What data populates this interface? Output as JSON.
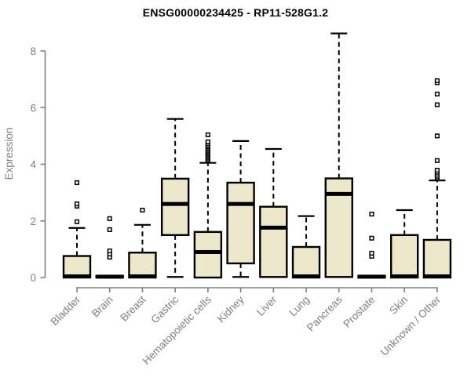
{
  "chart_data": {
    "type": "boxplot",
    "title": "ENSG00000234425 - RP11-528G1.2",
    "ylabel": "Expression",
    "xlabel": "",
    "yticks": [
      0,
      2,
      4,
      6,
      8
    ],
    "ylim": [
      0,
      8.7
    ],
    "grid": false,
    "outlier_marker": "open-square",
    "colors": {
      "box_fill": "#EDE8CB",
      "box_stroke": "#000000",
      "median": "#000000",
      "whisker": "#000000",
      "axis": "#7f7f7f",
      "tick_label": "#7f7f7f",
      "title": "#000000",
      "background": "#ffffff"
    },
    "categories": [
      "Bladder",
      "Brain",
      "Breast",
      "Gastric",
      "Hematopoietic cells",
      "Kidney",
      "Liver",
      "Lung",
      "Pancreas",
      "Prostate",
      "Skin",
      "Unknown / Other"
    ],
    "stats": [
      {
        "category": "Bladder",
        "whisker_low": 0,
        "q1": 0,
        "median": 0.04,
        "q3": 0.76,
        "whisker_high": 1.75,
        "outliers": [
          1.97,
          2.52,
          2.6,
          3.35
        ]
      },
      {
        "category": "Brain",
        "whisker_low": 0,
        "q1": 0,
        "median": 0.03,
        "q3": 0.06,
        "whisker_high": 0.06,
        "outliers": [
          0.72,
          0.83,
          0.94,
          1.69,
          2.08
        ]
      },
      {
        "category": "Breast",
        "whisker_low": 0,
        "q1": 0,
        "median": 0.04,
        "q3": 0.88,
        "whisker_high": 1.86,
        "outliers": [
          2.38
        ]
      },
      {
        "category": "Gastric",
        "whisker_low": 0.02,
        "q1": 1.5,
        "median": 2.6,
        "q3": 3.49,
        "whisker_high": 5.6,
        "outliers": []
      },
      {
        "category": "Hematopoietic cells",
        "whisker_low": 0,
        "q1": 0,
        "median": 0.9,
        "q3": 1.61,
        "whisker_high": 4.05,
        "outliers": [
          4.12,
          4.17,
          4.22,
          4.27,
          4.32,
          4.37,
          4.42,
          4.47,
          4.52,
          4.57,
          4.62,
          4.67,
          4.73,
          4.79,
          5.04
        ]
      },
      {
        "category": "Kidney",
        "whisker_low": 0.02,
        "q1": 0.5,
        "median": 2.6,
        "q3": 3.35,
        "whisker_high": 4.82,
        "outliers": []
      },
      {
        "category": "Liver",
        "whisker_low": 0.02,
        "q1": 0.02,
        "median": 1.76,
        "q3": 2.5,
        "whisker_high": 4.54,
        "outliers": []
      },
      {
        "category": "Lung",
        "whisker_low": 0,
        "q1": 0,
        "median": 0.04,
        "q3": 1.08,
        "whisker_high": 2.17,
        "outliers": []
      },
      {
        "category": "Pancreas",
        "whisker_low": 0.02,
        "q1": 0.02,
        "median": 2.95,
        "q3": 3.5,
        "whisker_high": 8.62,
        "outliers": []
      },
      {
        "category": "Prostate",
        "whisker_low": 0,
        "q1": 0,
        "median": 0.03,
        "q3": 0.06,
        "whisker_high": 0.06,
        "outliers": [
          0.75,
          0.86,
          1.39,
          2.24
        ]
      },
      {
        "category": "Skin",
        "whisker_low": 0,
        "q1": 0,
        "median": 0.04,
        "q3": 1.5,
        "whisker_high": 2.38,
        "outliers": []
      },
      {
        "category": "Unknown / Other",
        "whisker_low": 0,
        "q1": 0,
        "median": 0.04,
        "q3": 1.33,
        "whisker_high": 3.43,
        "outliers": [
          3.52,
          3.58,
          3.65,
          3.72,
          3.79,
          4.13,
          5.0,
          6.1,
          6.48,
          6.88,
          6.95
        ]
      }
    ]
  }
}
